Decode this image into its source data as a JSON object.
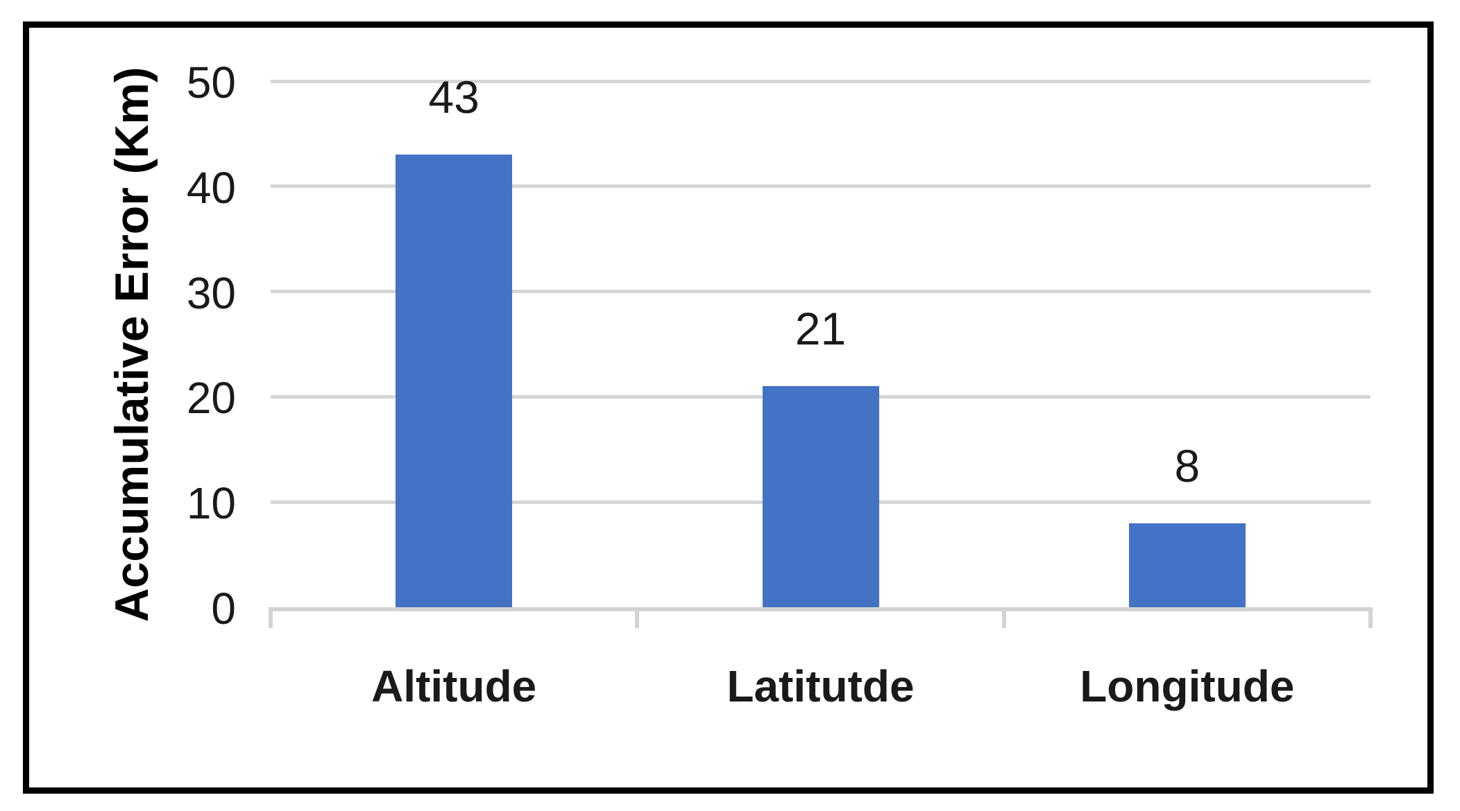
{
  "chart_data": {
    "type": "bar",
    "categories": [
      "Altitude",
      "Latitutde",
      "Longitude"
    ],
    "values": [
      43,
      21,
      8
    ],
    "title": "",
    "xlabel": "",
    "ylabel": "Accumulative Error (Km)",
    "ylim": [
      0,
      50
    ],
    "yticks": [
      0,
      10,
      20,
      30,
      40,
      50
    ],
    "grid": true,
    "legend_position": "none",
    "data_labels": [
      43,
      21,
      8
    ],
    "colors": {
      "bar": "#4472C4",
      "gridline": "#D6D6D6",
      "axis_line": "#D3D3D3",
      "text": "#1A1A1A",
      "frame_border": "#000000",
      "background": "#FFFFFF"
    }
  }
}
